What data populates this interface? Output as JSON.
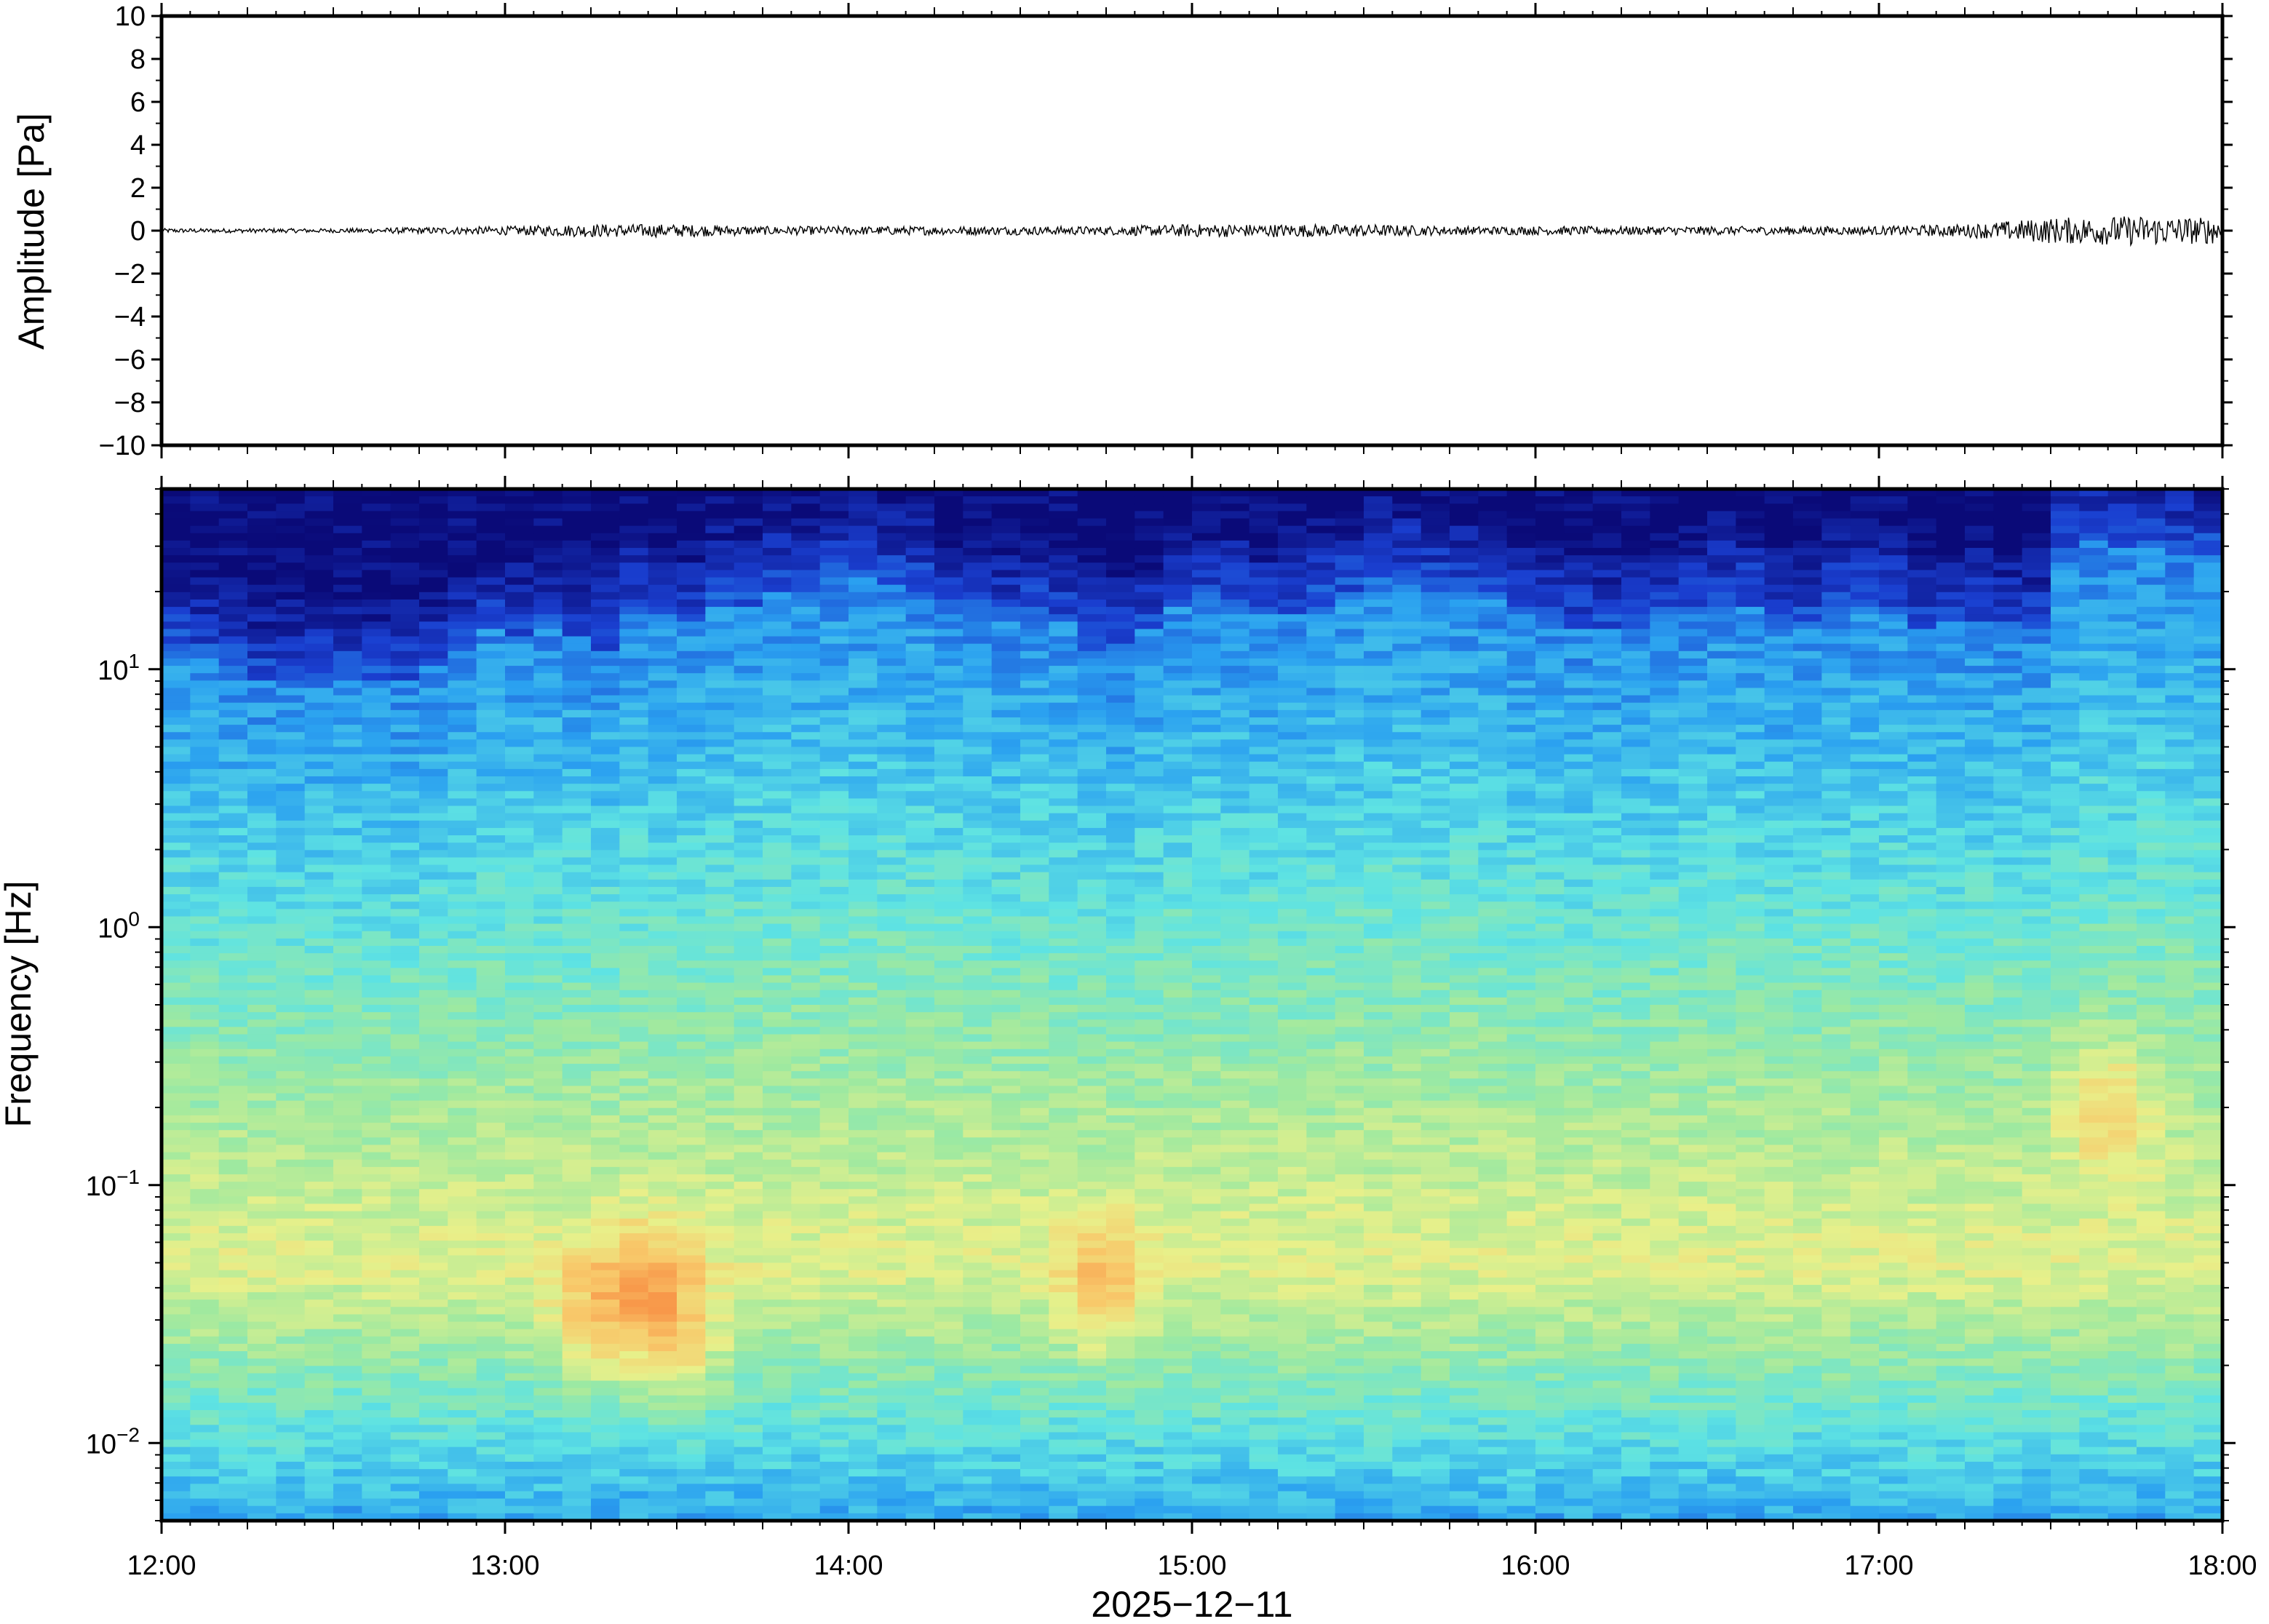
{
  "chart_data": [
    {
      "type": "line",
      "ylabel": "Amplitude [Pa]",
      "ylim": [
        -10,
        10
      ],
      "yticks": [
        {
          "value": 10,
          "label": "10"
        },
        {
          "value": 8,
          "label": "8"
        },
        {
          "value": 6,
          "label": "6"
        },
        {
          "value": 4,
          "label": "4"
        },
        {
          "value": 2,
          "label": "2"
        },
        {
          "value": 0,
          "label": "0"
        },
        {
          "value": -2,
          "label": "−2"
        },
        {
          "value": -4,
          "label": "−4"
        },
        {
          "value": -6,
          "label": "−6"
        },
        {
          "value": -8,
          "label": "−8"
        },
        {
          "value": -10,
          "label": "−10"
        }
      ],
      "x_range": [
        "12:00",
        "18:00"
      ],
      "series": [
        {
          "description_of_envelope": "approximate peak amplitude per 15 min window",
          "x": [
            "12:00",
            "12:15",
            "12:30",
            "12:45",
            "13:00",
            "13:15",
            "13:30",
            "13:45",
            "14:00",
            "14:15",
            "14:30",
            "14:45",
            "15:00",
            "15:15",
            "15:30",
            "15:45",
            "16:00",
            "16:15",
            "16:30",
            "16:45",
            "17:00",
            "17:15",
            "17:30",
            "17:45",
            "18:00"
          ],
          "envelope": [
            0.1,
            0.1,
            0.1,
            0.15,
            0.2,
            0.3,
            0.3,
            0.2,
            0.2,
            0.2,
            0.2,
            0.2,
            0.3,
            0.3,
            0.3,
            0.2,
            0.2,
            0.2,
            0.2,
            0.2,
            0.2,
            0.3,
            0.6,
            0.7,
            0.6
          ]
        }
      ]
    },
    {
      "type": "heatmap",
      "ylabel": "Frequency [Hz]",
      "yscale": "log",
      "ylim": [
        0.005,
        50
      ],
      "yticks": [
        {
          "value": 10,
          "base": "10",
          "exp": "1"
        },
        {
          "value": 1,
          "base": "10",
          "exp": "0"
        },
        {
          "value": 0.1,
          "base": "10",
          "exp": "−1"
        },
        {
          "value": 0.01,
          "base": "10",
          "exp": "−2"
        }
      ],
      "xticks": [
        "12:00",
        "13:00",
        "14:00",
        "15:00",
        "16:00",
        "17:00",
        "18:00"
      ],
      "xlabel": "2025−12−11",
      "colormap": [
        "#0a0a78",
        "#1a3fd0",
        "#2aa0f0",
        "#5ee3e3",
        "#9ee9a0",
        "#e8f08a",
        "#f8c86a",
        "#f8984a"
      ],
      "time_columns": 72,
      "power_profile_note": "relative power 0..1 vs log10 frequency; high at 0.02–0.08 Hz, low above ~10 Hz",
      "column_high_freq_cutoff_hz": [
        12,
        11,
        10,
        9,
        9,
        9,
        9,
        9,
        9,
        10,
        12,
        14,
        13,
        14,
        13,
        12,
        16,
        16,
        15,
        18,
        18,
        20,
        20,
        22,
        22,
        21,
        20,
        17,
        16,
        15,
        16,
        15,
        12,
        12,
        14,
        18,
        18,
        17,
        16,
        16,
        18,
        20,
        22,
        22,
        20,
        20,
        19,
        16,
        15,
        14,
        14,
        14,
        16,
        16,
        18,
        18,
        14,
        15,
        18,
        18,
        17,
        14,
        15,
        15,
        14,
        14,
        28,
        32,
        30,
        30,
        28,
        28
      ],
      "low_freq_hotspots": [
        {
          "time": "13:15",
          "freq_hz": 0.03
        },
        {
          "time": "13:25",
          "freq_hz": 0.04
        },
        {
          "time": "13:30",
          "freq_hz": 0.025
        },
        {
          "time": "14:45",
          "freq_hz": 0.04
        },
        {
          "time": "17:40",
          "freq_hz": 0.2
        }
      ]
    }
  ]
}
